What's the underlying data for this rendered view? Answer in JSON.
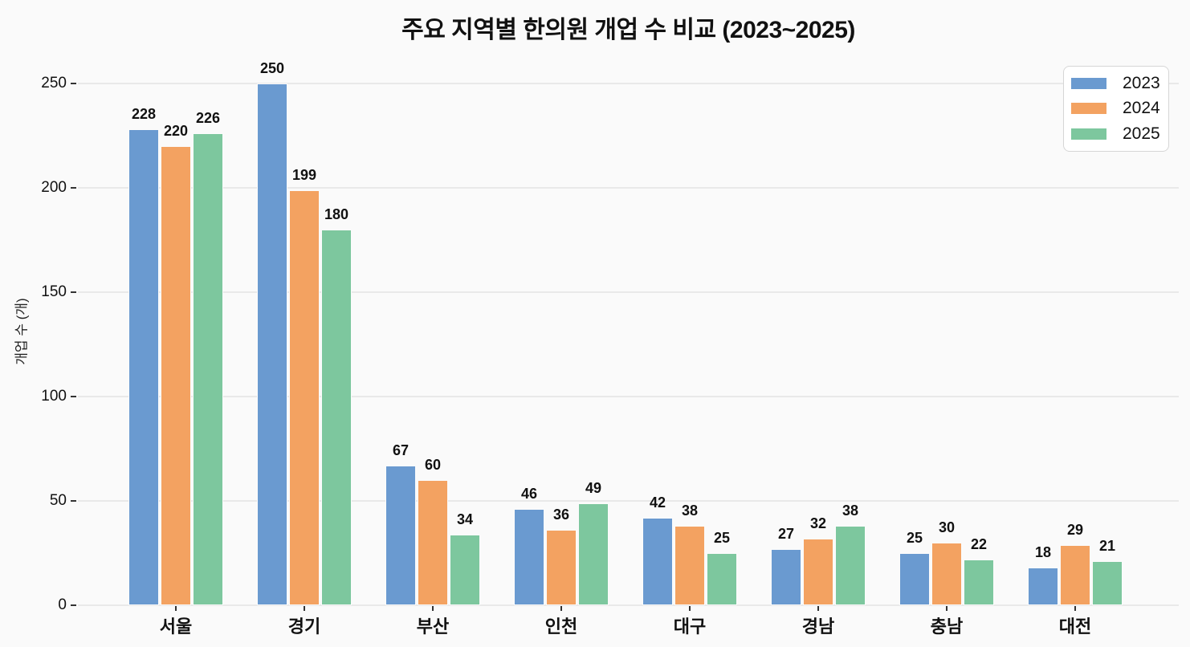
{
  "chart_data": {
    "type": "bar",
    "title": "주요 지역별 한의원 개업 수 비교 (2023~2025)",
    "xlabel": "",
    "ylabel": "개업 수 (개)",
    "categories": [
      "서울",
      "경기",
      "부산",
      "인천",
      "대구",
      "경남",
      "충남",
      "대전"
    ],
    "series": [
      {
        "name": "2023",
        "color": "#6a9ad0",
        "values": [
          228,
          250,
          67,
          46,
          42,
          27,
          25,
          18
        ]
      },
      {
        "name": "2024",
        "color": "#f3a261",
        "values": [
          220,
          199,
          60,
          36,
          38,
          32,
          30,
          29
        ]
      },
      {
        "name": "2025",
        "color": "#7dc79e",
        "values": [
          226,
          180,
          34,
          49,
          25,
          38,
          22,
          21
        ]
      }
    ],
    "ylim": [
      0,
      250
    ],
    "yticks": [
      0,
      50,
      100,
      150,
      200,
      250
    ],
    "grid": "horizontal",
    "value_labels": true,
    "legend_position": "top-right"
  },
  "colors": {
    "background": "#fafafa",
    "gridline": "#e9e9e9",
    "text": "#111111"
  }
}
